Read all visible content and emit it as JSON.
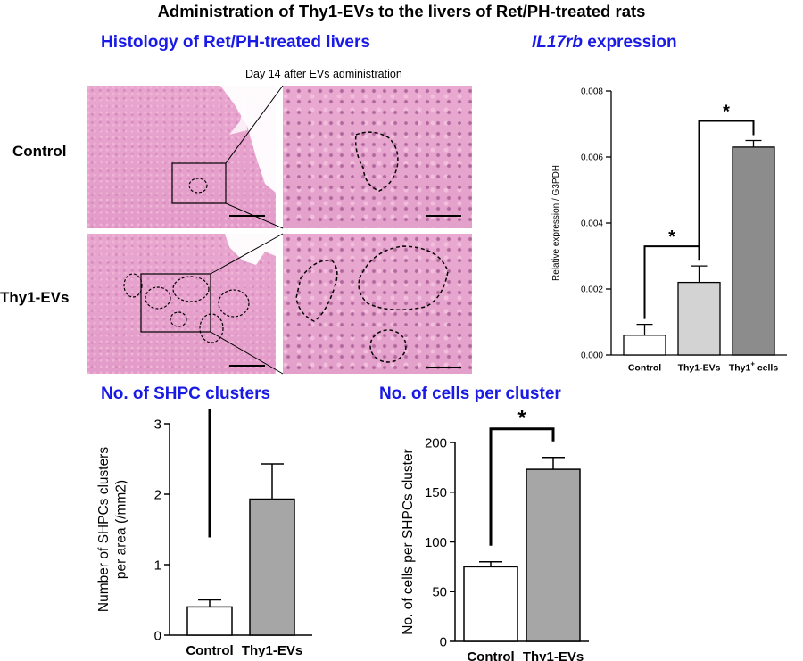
{
  "title": "Administration of Thy1-EVs to the livers of Ret/PH-treated rats",
  "histology": {
    "title": "Histology of Ret/PH-treated livers",
    "caption": "Day 14 after EVs administration",
    "rows": [
      "Control",
      "Thy1-EVs"
    ]
  },
  "colors": {
    "title_blue": "#1a1ae6",
    "bar_white": "#ffffff",
    "bar_light": "#d3d3d3",
    "bar_gray": "#a6a6a6",
    "bar_dark": "#8c8c8c"
  },
  "chart_data": [
    {
      "id": "il17rb",
      "type": "bar",
      "title_italic": "IL17rb",
      "title_rest": " expression",
      "ylabel": "Relative expression / G3PDH",
      "categories": [
        "Control",
        "Thy1-EVs",
        "Thy1+ cells"
      ],
      "category_labels": [
        {
          "main": "Control",
          "sup": "",
          "rest": ""
        },
        {
          "main": "Thy1-EVs",
          "sup": "",
          "rest": ""
        },
        {
          "main": "Thy1",
          "sup": "+",
          "rest": " cells"
        }
      ],
      "values": [
        0.0006,
        0.0022,
        0.0063
      ],
      "errors": [
        0.00033,
        0.0005,
        0.0002
      ],
      "colors": [
        "#ffffff",
        "#d3d3d3",
        "#8c8c8c"
      ],
      "ylim": [
        0,
        0.008
      ],
      "yticks": [
        0,
        0.002,
        0.004,
        0.006,
        0.008
      ],
      "ytick_labels": [
        "0.000",
        "0.002",
        "0.004",
        "0.006",
        "0.008"
      ],
      "significance": [
        {
          "from": 0,
          "to": 1,
          "label": "*"
        },
        {
          "from": 1,
          "to": 2,
          "label": "*"
        }
      ]
    },
    {
      "id": "clusters",
      "type": "bar",
      "title": "No. of SHPC clusters",
      "ylabel_lines": [
        "Number of SHPCs clusters",
        "per area (/mm2)"
      ],
      "categories": [
        "Control",
        "Thy1-EVs"
      ],
      "values": [
        0.4,
        1.93
      ],
      "errors": [
        0.1,
        0.5
      ],
      "colors": [
        "#ffffff",
        "#a6a6a6"
      ],
      "ylim": [
        0,
        3
      ],
      "yticks": [
        0,
        1,
        2,
        3
      ],
      "ytick_labels": [
        "0",
        "1",
        "2",
        "3"
      ],
      "significance": [
        {
          "from": 0,
          "to": 1,
          "label": "*"
        }
      ]
    },
    {
      "id": "cells",
      "type": "bar",
      "title": "No. of cells per cluster",
      "ylabel": "No. of cells per SHPCs cluster",
      "categories": [
        "Control",
        "Thy1-EVs"
      ],
      "values": [
        75,
        173
      ],
      "errors": [
        5,
        12
      ],
      "colors": [
        "#ffffff",
        "#a6a6a6"
      ],
      "ylim": [
        0,
        200
      ],
      "yticks": [
        0,
        50,
        100,
        150,
        200
      ],
      "ytick_labels": [
        "0",
        "50",
        "100",
        "150",
        "200"
      ],
      "significance": [
        {
          "from": 0,
          "to": 1,
          "label": "*"
        }
      ]
    }
  ]
}
